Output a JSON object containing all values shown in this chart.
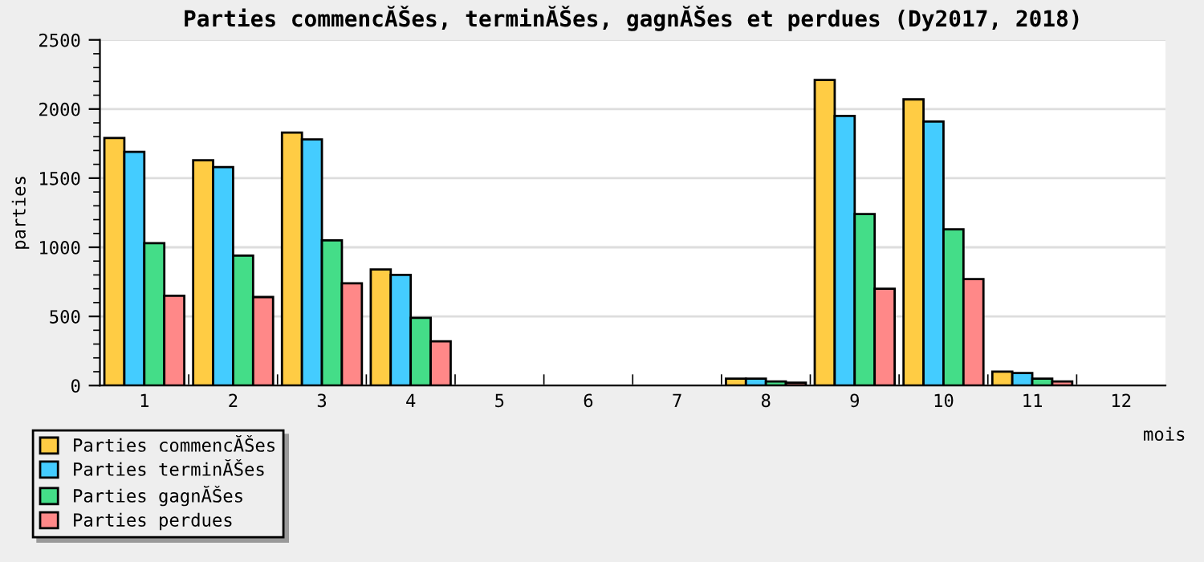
{
  "chart_data": {
    "type": "bar",
    "title": "Parties commencĂŠes, terminĂŠes, gagnĂŠes et perdues (Dy2017, 2018)",
    "xlabel": "mois",
    "ylabel": "parties",
    "categories": [
      "1",
      "2",
      "3",
      "4",
      "5",
      "6",
      "7",
      "8",
      "9",
      "10",
      "11",
      "12"
    ],
    "series": [
      {
        "name": "Parties commencĂŠes",
        "color": "#ffcc44",
        "values": [
          1790,
          1630,
          1830,
          840,
          null,
          null,
          null,
          50,
          2210,
          2070,
          100,
          null
        ]
      },
      {
        "name": "Parties terminĂŠes",
        "color": "#44ccff",
        "values": [
          1690,
          1580,
          1780,
          800,
          null,
          null,
          null,
          50,
          1950,
          1910,
          90,
          null
        ]
      },
      {
        "name": "Parties gagnĂŠes",
        "color": "#44dd88",
        "values": [
          1030,
          940,
          1050,
          490,
          null,
          null,
          null,
          30,
          1240,
          1130,
          50,
          null
        ]
      },
      {
        "name": "Parties perdues",
        "color": "#ff8888",
        "values": [
          650,
          640,
          740,
          320,
          null,
          null,
          null,
          20,
          700,
          770,
          30,
          null
        ]
      }
    ],
    "ylim": [
      0,
      2500
    ],
    "yticks": [
      0,
      500,
      1000,
      1500,
      2000,
      2500
    ],
    "grid": "y",
    "legend": "bottom left"
  }
}
